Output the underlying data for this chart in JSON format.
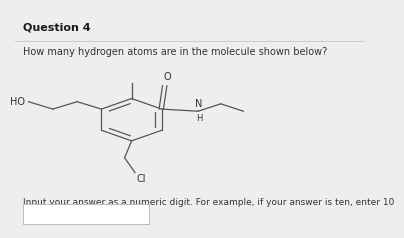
{
  "title": "Question 4",
  "question_text": "How many hydrogen atoms are in the molecule shown below?",
  "footer_text": "Input your answer as a numeric digit. For example, if your answer is ten, enter 10",
  "bg_color": "#eeeeee",
  "main_bg": "#ffffff",
  "title_fontsize": 8,
  "body_fontsize": 7,
  "footer_fontsize": 6.5,
  "line_color": "#555555",
  "text_color": "#333333"
}
